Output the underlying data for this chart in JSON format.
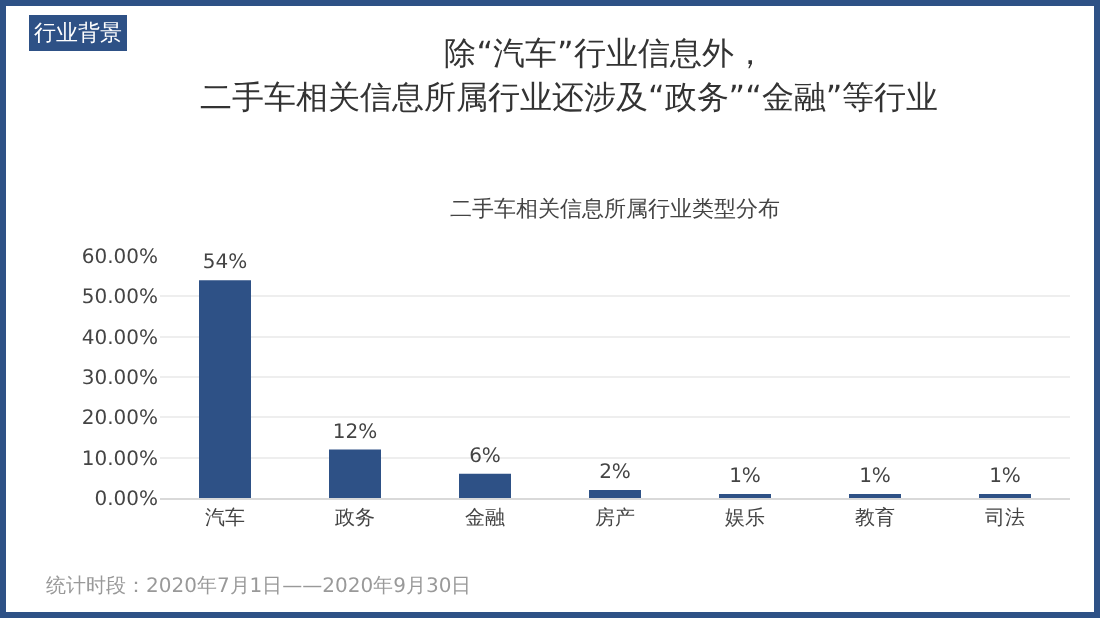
{
  "chart_data": {
    "type": "bar",
    "title": "除“汽车”行业信息外，",
    "subtitle": "二手车相关信息所属行业还涉及“政务”“金融”等行业",
    "categories": [
      "汽车",
      "政务",
      "金融",
      "房产",
      "娱乐",
      "教育",
      "司法"
    ],
    "values": [
      54,
      12,
      6,
      2,
      1,
      1,
      1
    ],
    "value_labels": [
      "54%",
      "12%",
      "6%",
      "2%",
      "1%",
      "1%",
      "1%"
    ],
    "color": "#2e5186",
    "ylim": [
      0,
      60
    ],
    "yticks": [
      {
        "value": 0,
        "label": "0.00%"
      },
      {
        "value": 10,
        "label": "10.00%"
      },
      {
        "value": 20,
        "label": "20.00%"
      },
      {
        "value": 30,
        "label": "30.00%"
      },
      {
        "value": 40,
        "label": "40.00%"
      },
      {
        "value": 50,
        "label": "50.00%"
      },
      {
        "value": 60,
        "label": "60.00%"
      }
    ],
    "grid": "y",
    "annotations": [
      "行业背景",
      "统计时段：2020年7月1日——2020年9月30日",
      "二手车相关信息所属行业类型分布"
    ]
  }
}
